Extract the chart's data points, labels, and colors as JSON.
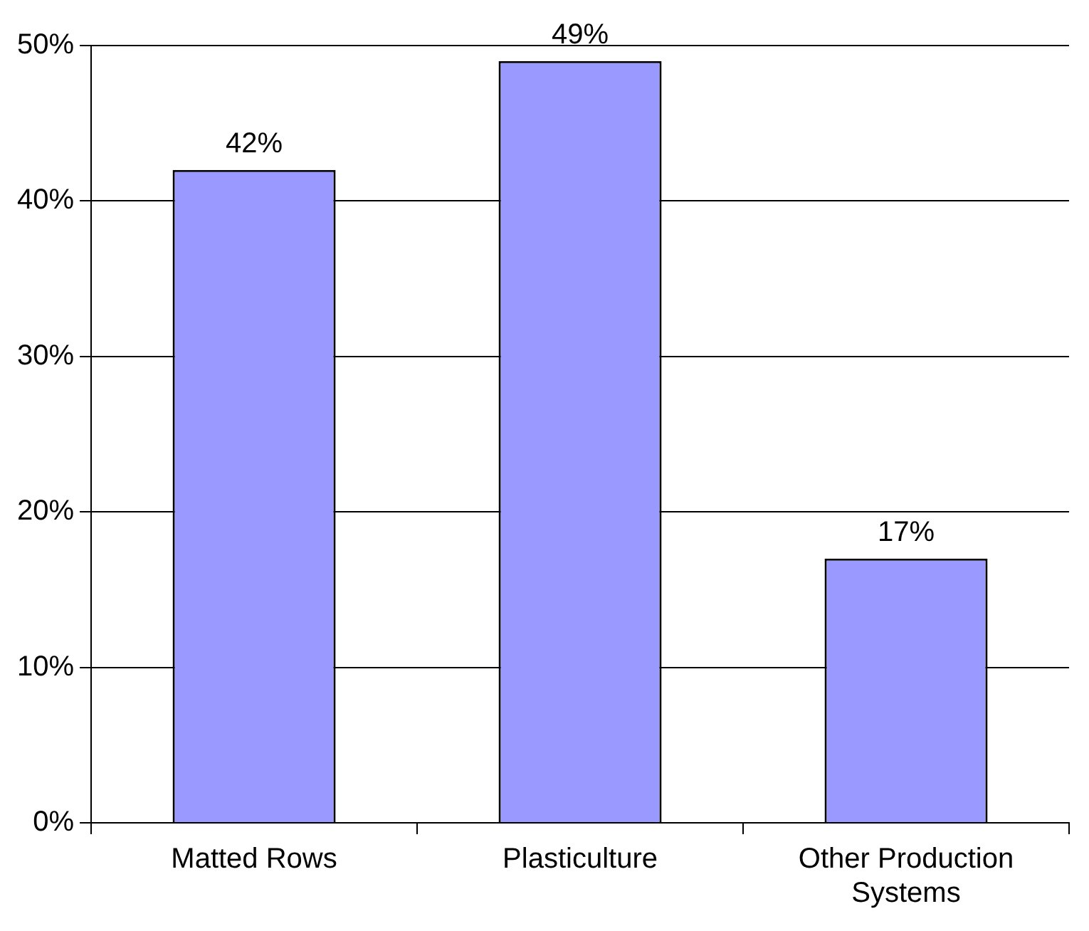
{
  "chart_data": {
    "type": "bar",
    "categories": [
      "Matted Rows",
      "Plasticulture",
      "Other Production Systems"
    ],
    "values": [
      42,
      49,
      17
    ],
    "value_labels": [
      "42%",
      "49%",
      "17%"
    ],
    "color": "#9999ff",
    "ylim": [
      0,
      50
    ],
    "yticks": [
      {
        "value": 0,
        "label": "0%"
      },
      {
        "value": 10,
        "label": "10%"
      },
      {
        "value": 20,
        "label": "20%"
      },
      {
        "value": 30,
        "label": "30%"
      },
      {
        "value": 40,
        "label": "40%"
      },
      {
        "value": 50,
        "label": "50%"
      }
    ],
    "grid": "y",
    "legend": false
  }
}
